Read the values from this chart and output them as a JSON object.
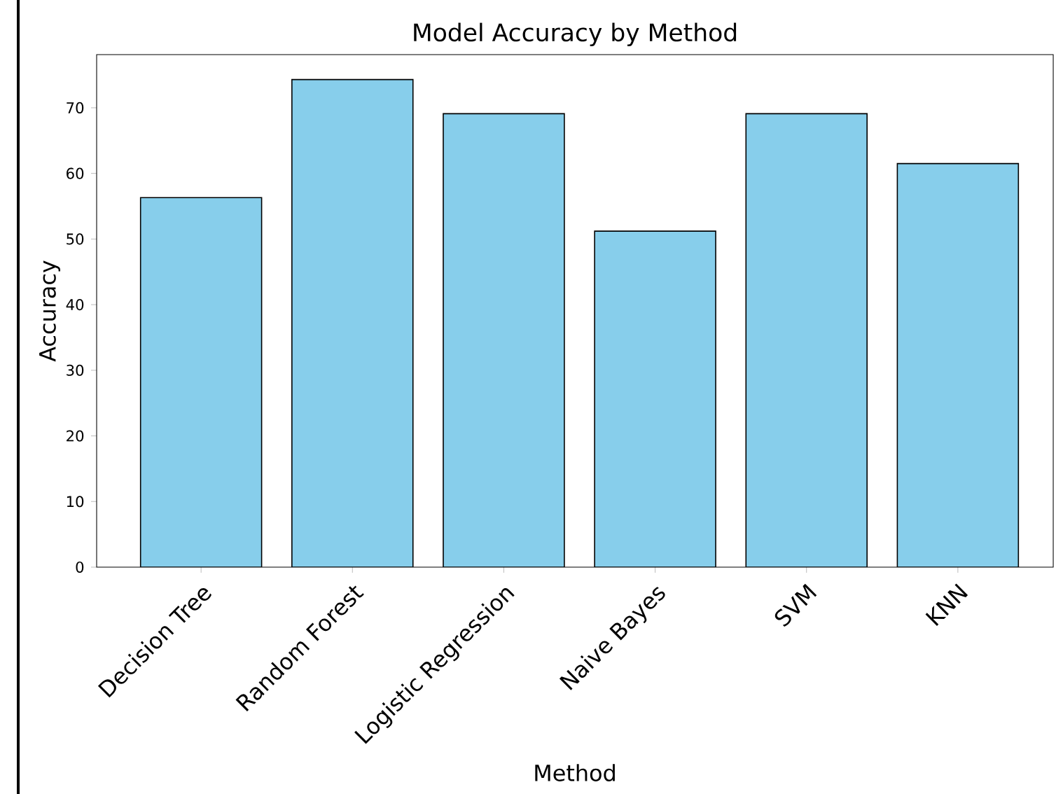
{
  "chart_data": {
    "type": "bar",
    "title": "Model Accuracy by Method",
    "xlabel": "Method",
    "ylabel": "Accuracy",
    "categories": [
      "Decision Tree",
      "Random Forest",
      "Logistic Regression",
      "Naive Bayes",
      "SVM",
      "KNN"
    ],
    "values": [
      56.3,
      74.3,
      69.1,
      51.2,
      69.1,
      61.5
    ],
    "color": "#87ceeb",
    "ylim": [
      0,
      78.1
    ],
    "yticks": [
      0,
      10,
      20,
      30,
      40,
      50,
      60,
      70
    ],
    "grid": false
  }
}
